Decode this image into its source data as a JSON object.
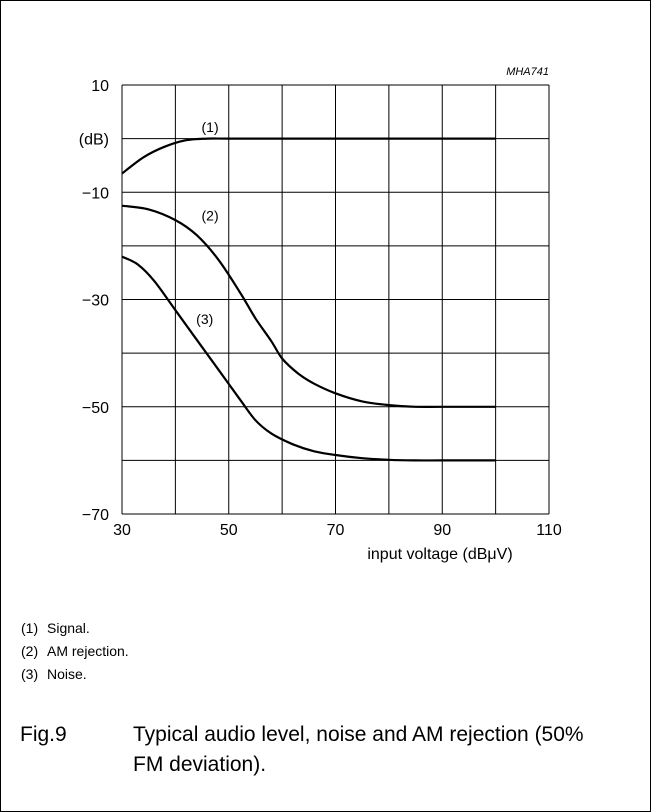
{
  "chart_data": {
    "type": "line",
    "code": "MHA741",
    "xlabel": "input voltage (dBμV)",
    "ylabel": "(dB)",
    "xlim": [
      30,
      110
    ],
    "ylim": [
      -70,
      10
    ],
    "grid": true,
    "x_ticks": [
      "30",
      "50",
      "70",
      "90",
      "110"
    ],
    "y_ticks": [
      "10",
      "−10",
      "−30",
      "−50",
      "−70"
    ],
    "series": [
      {
        "name": "(1)",
        "x": [
          30,
          34,
          38,
          42,
          46,
          50,
          60,
          70,
          80,
          90,
          100
        ],
        "y": [
          -6.5,
          -3.5,
          -1.5,
          -0.3,
          0,
          0,
          0,
          0,
          0,
          0,
          0
        ]
      },
      {
        "name": "(2)",
        "x": [
          30,
          35,
          40,
          44,
          48,
          52,
          55,
          58,
          60,
          63,
          66,
          70,
          75,
          80,
          85,
          90,
          100
        ],
        "y": [
          -12.5,
          -13.2,
          -15.2,
          -18,
          -22.5,
          -28.5,
          -33.5,
          -37.8,
          -41,
          -43.8,
          -45.7,
          -47.5,
          -49,
          -49.7,
          -50,
          -50,
          -50
        ]
      },
      {
        "name": "(3)",
        "x": [
          30,
          33,
          36,
          40,
          44,
          48,
          52,
          55,
          58,
          62,
          66,
          70,
          75,
          80,
          85,
          90,
          100
        ],
        "y": [
          -22,
          -23.5,
          -26.5,
          -32,
          -37.5,
          -43,
          -48.5,
          -52.5,
          -55,
          -57,
          -58.3,
          -59,
          -59.6,
          -59.9,
          -60,
          -60,
          -60
        ]
      }
    ]
  },
  "notes": [
    {
      "num": "(1)",
      "text": "Signal."
    },
    {
      "num": "(2)",
      "text": "AM rejection."
    },
    {
      "num": "(3)",
      "text": "Noise."
    }
  ],
  "caption": {
    "number": "Fig.9",
    "text": "Typical audio level, noise and AM rejection (50% FM deviation)."
  }
}
